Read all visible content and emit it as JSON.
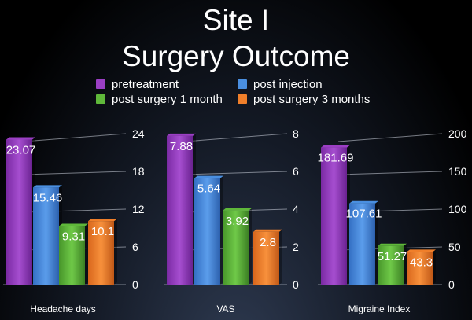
{
  "title_line1": "Site I",
  "title_line2": "Surgery Outcome",
  "legend": [
    {
      "label": "pretreatment",
      "color": "#9b3fc4"
    },
    {
      "label": "post injection",
      "color": "#4a8fe0"
    },
    {
      "label": "post surgery 1 month",
      "color": "#5fb83a"
    },
    {
      "label": "post surgery 3 months",
      "color": "#f07f2a"
    }
  ],
  "chart_data": [
    {
      "type": "bar",
      "xlabel": "Headache days",
      "series_names": [
        "pretreatment",
        "post injection",
        "post surgery 1 month",
        "post surgery 3 months"
      ],
      "values": [
        23.07,
        15.46,
        9.31,
        10.1
      ],
      "value_labels": [
        "23.07",
        "15.46",
        "9.31",
        "10.1"
      ],
      "ylim": [
        0,
        24
      ],
      "ticks": [
        "0",
        "6",
        "12",
        "18",
        "24"
      ]
    },
    {
      "type": "bar",
      "xlabel": "VAS",
      "series_names": [
        "pretreatment",
        "post injection",
        "post surgery 1 month",
        "post surgery 3 months"
      ],
      "values": [
        7.88,
        5.64,
        3.92,
        2.8
      ],
      "value_labels": [
        "7.88",
        "5.64",
        "3.92",
        "2.8"
      ],
      "ylim": [
        0,
        8
      ],
      "ticks": [
        "0",
        "2",
        "4",
        "6",
        "8"
      ]
    },
    {
      "type": "bar",
      "xlabel": "Migraine Index",
      "series_names": [
        "pretreatment",
        "post injection",
        "post surgery 1 month",
        "post surgery 3 months"
      ],
      "values": [
        181.69,
        107.61,
        51.27,
        43.3
      ],
      "value_labels": [
        "181.69",
        "107.61",
        "51.27",
        "43.3"
      ],
      "ylim": [
        0,
        200
      ],
      "ticks": [
        "0",
        "50",
        "100",
        "150",
        "200"
      ]
    }
  ]
}
